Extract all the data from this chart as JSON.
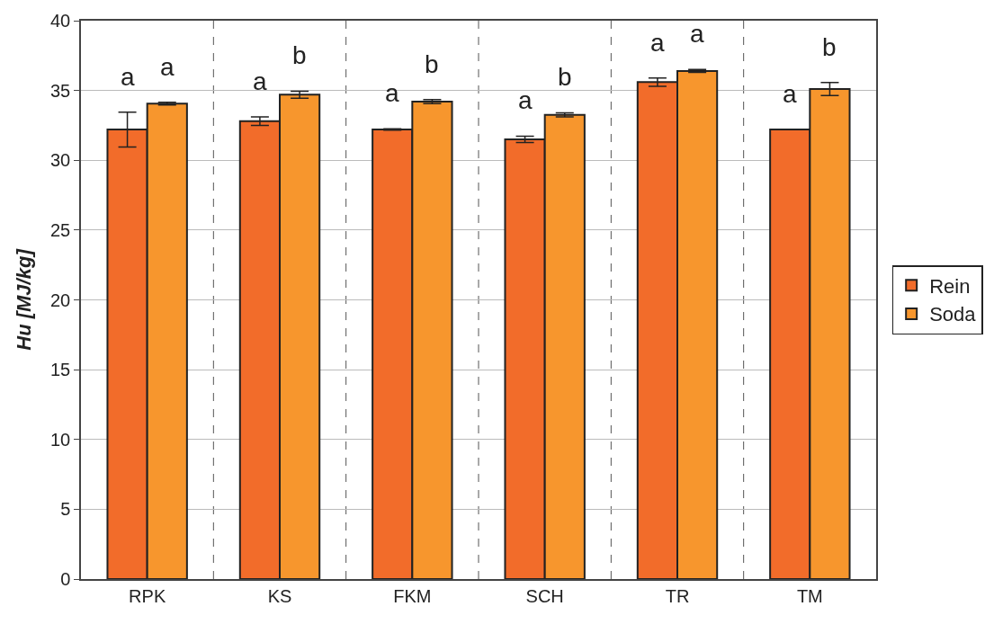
{
  "chart_data": {
    "type": "bar",
    "ylabel": "Hu [MJ/kg]",
    "categories": [
      "RPK",
      "KS",
      "FKM",
      "SCH",
      "TR",
      "TM"
    ],
    "series": [
      {
        "name": "Rein",
        "color": "#f26c2a",
        "values": [
          32.2,
          32.8,
          32.2,
          31.5,
          35.6,
          32.2
        ],
        "errors": [
          1.25,
          0.3,
          0.05,
          0.23,
          0.3,
          0
        ],
        "value_labels": [
          "a",
          "a",
          "a",
          "a",
          "a",
          "a"
        ]
      },
      {
        "name": "Soda",
        "color": "#f7962d",
        "values": [
          34.06,
          34.7,
          34.2,
          33.25,
          36.4,
          35.1
        ],
        "errors": [
          0.1,
          0.25,
          0.15,
          0.15,
          0.1,
          0.47
        ],
        "value_labels": [
          "a",
          "b",
          "b",
          "b",
          "a",
          "b"
        ]
      }
    ],
    "ylim": [
      0,
      40
    ],
    "yticks": [
      0,
      5,
      10,
      15,
      20,
      25,
      30,
      35,
      40
    ],
    "grid": true,
    "legend": "right"
  }
}
